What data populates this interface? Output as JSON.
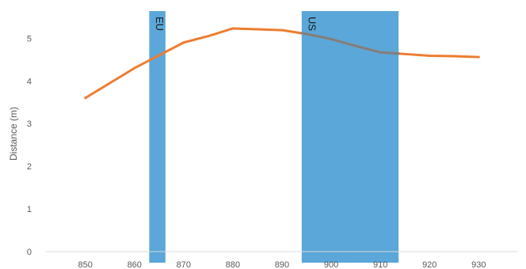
{
  "chart_data": {
    "type": "line",
    "title": "",
    "xlabel": "",
    "ylabel": "Distance (m)",
    "xlim": [
      842,
      938
    ],
    "ylim": [
      0,
      5.6
    ],
    "x_ticks": [
      850,
      860,
      870,
      880,
      890,
      900,
      910,
      920,
      930
    ],
    "y_ticks": [
      0,
      1,
      2,
      3,
      4,
      5
    ],
    "grid": false,
    "legend": "none",
    "series": [
      {
        "x": [
          850,
          855,
          860,
          865,
          870,
          875,
          880,
          885,
          890,
          895,
          900,
          905,
          910,
          915,
          920,
          925,
          930
        ],
        "y": [
          3.6,
          3.95,
          4.3,
          4.6,
          4.9,
          5.05,
          5.23,
          5.21,
          5.19,
          5.1,
          4.98,
          4.82,
          4.67,
          4.63,
          4.59,
          4.58,
          4.56
        ],
        "color": "#ED7D31"
      }
    ],
    "bands": [
      {
        "label": "EU",
        "x_start": 863,
        "x_end": 866.3,
        "color": "#5BA7D9"
      },
      {
        "label": "US",
        "x_start": 894,
        "x_end": 913.7,
        "color": "#5BA7D9"
      }
    ],
    "overlap_line_color": "#7F7F7F",
    "axis_color": "#D9D9D9"
  }
}
